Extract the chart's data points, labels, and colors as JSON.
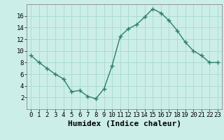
{
  "x": [
    0,
    1,
    2,
    3,
    4,
    5,
    6,
    7,
    8,
    9,
    10,
    11,
    12,
    13,
    14,
    15,
    16,
    17,
    18,
    19,
    20,
    21,
    22,
    23
  ],
  "y": [
    9.2,
    8.0,
    7.0,
    6.0,
    5.2,
    3.0,
    3.2,
    2.2,
    1.8,
    3.5,
    7.5,
    12.5,
    13.8,
    14.5,
    15.8,
    17.2,
    16.5,
    15.2,
    13.5,
    11.5,
    10.0,
    9.2,
    8.0,
    8.0
  ],
  "line_color": "#2e7d6e",
  "marker": "+",
  "marker_size": 4,
  "bg_color": "#cceee8",
  "grid_color": "#aaddcc",
  "xlabel": "Humidex (Indice chaleur)",
  "xlim": [
    -0.5,
    23.5
  ],
  "ylim": [
    0,
    18
  ],
  "yticks": [
    2,
    4,
    6,
    8,
    10,
    12,
    14,
    16
  ],
  "xticks": [
    0,
    1,
    2,
    3,
    4,
    5,
    6,
    7,
    8,
    9,
    10,
    11,
    12,
    13,
    14,
    15,
    16,
    17,
    18,
    19,
    20,
    21,
    22,
    23
  ],
  "xlabel_fontsize": 8,
  "tick_fontsize": 6.5
}
